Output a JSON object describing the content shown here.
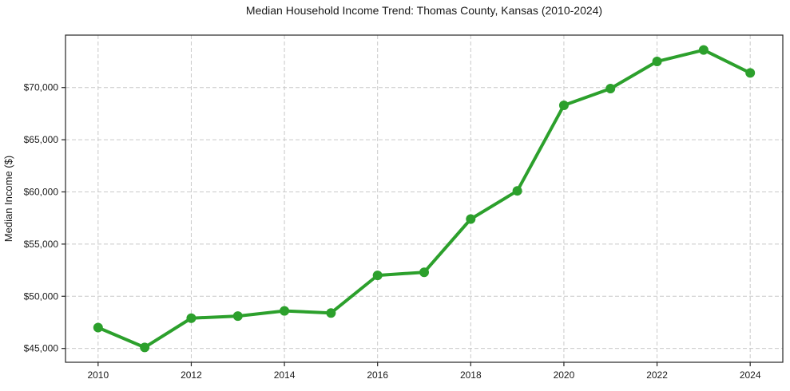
{
  "chart_data": {
    "type": "line",
    "title": "Median Household Income Trend: Thomas County, Kansas (2010-2024)",
    "xlabel": "",
    "ylabel": "Median Income ($)",
    "x": [
      2010,
      2011,
      2012,
      2013,
      2014,
      2015,
      2016,
      2017,
      2018,
      2019,
      2020,
      2021,
      2022,
      2023,
      2024
    ],
    "values": [
      47000,
      45100,
      47900,
      48100,
      48600,
      48400,
      52000,
      52300,
      57400,
      60100,
      68300,
      69900,
      72500,
      73600,
      71400
    ],
    "series_name": "Median Household Income",
    "xlim": [
      2009.3,
      2024.7
    ],
    "ylim": [
      43675,
      75025
    ],
    "x_ticks": [
      2010,
      2012,
      2014,
      2016,
      2018,
      2020,
      2022,
      2024
    ],
    "x_tick_labels": [
      "2010",
      "2012",
      "2014",
      "2016",
      "2018",
      "2020",
      "2022",
      "2024"
    ],
    "y_ticks": [
      45000,
      50000,
      55000,
      60000,
      65000,
      70000
    ],
    "y_tick_labels": [
      "$45,000",
      "$50,000",
      "$55,000",
      "$60,000",
      "$65,000",
      "$70,000"
    ],
    "grid": true,
    "grid_style": "dashed",
    "legend_position": "none",
    "colors": {
      "line": "#2ca02c",
      "marker": "#2ca02c",
      "grid": "#c9c9c9",
      "spine": "#262626",
      "text": "#1a1a1a",
      "background": "#ffffff"
    }
  }
}
